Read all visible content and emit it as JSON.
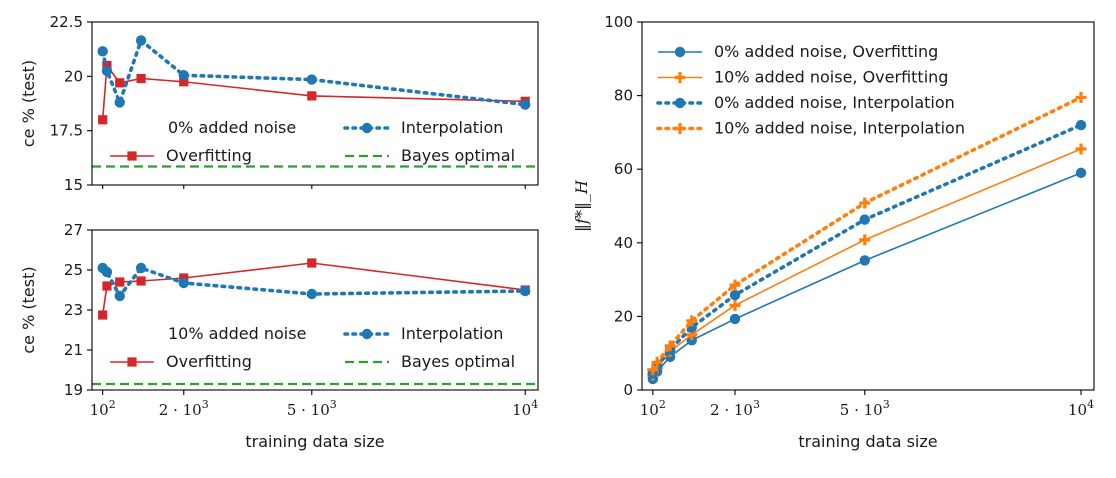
{
  "chart_data": [
    {
      "type": "line",
      "panel": "top-left",
      "xlabel": "",
      "ylabel": "ce % (test)",
      "xlim": [
        -150,
        10300
      ],
      "ylim": [
        15,
        22.5
      ],
      "yticks": [
        "15",
        "17.5",
        "20",
        "22.5"
      ],
      "ytick_values": [
        15,
        17.5,
        20,
        22.5
      ],
      "legend_title": "0% added noise",
      "legend_position": "center",
      "series": [
        {
          "name": "Overfitting",
          "style": "solid",
          "marker": "square",
          "color": "#d62728",
          "x": [
            100,
            200,
            500,
            1000,
            2000,
            5000,
            10000
          ],
          "y": [
            18.0,
            20.5,
            19.7,
            19.9,
            19.75,
            19.1,
            18.85
          ]
        },
        {
          "name": "Interpolation",
          "style": "dotted",
          "marker": "circle",
          "color": "#1f77b4",
          "x": [
            100,
            200,
            500,
            1000,
            2000,
            5000,
            10000
          ],
          "y": [
            21.15,
            20.25,
            18.8,
            21.65,
            20.05,
            19.85,
            18.7
          ]
        },
        {
          "name": "Bayes optimal",
          "style": "dashed",
          "marker": "none",
          "color": "#2ca02c",
          "x": [
            -150,
            10300
          ],
          "y": [
            15.85,
            15.85
          ]
        }
      ]
    },
    {
      "type": "line",
      "panel": "bottom-left",
      "xlabel": "training data size",
      "ylabel": "ce % (test)",
      "xlim": [
        -150,
        10300
      ],
      "ylim": [
        19,
        27
      ],
      "xticks": [
        "10^2",
        "2·10^3",
        "5·10^3",
        "10^4"
      ],
      "xtick_values": [
        100,
        2000,
        5000,
        10000
      ],
      "yticks": [
        "19",
        "21",
        "23",
        "25",
        "27"
      ],
      "ytick_values": [
        19,
        21,
        23,
        25,
        27
      ],
      "legend_title": "10% added noise",
      "legend_position": "center",
      "series": [
        {
          "name": "Overfitting",
          "style": "solid",
          "marker": "square",
          "color": "#d62728",
          "x": [
            100,
            200,
            500,
            1000,
            2000,
            5000,
            10000
          ],
          "y": [
            22.75,
            24.2,
            24.4,
            24.45,
            24.6,
            25.35,
            24.0
          ]
        },
        {
          "name": "Interpolation",
          "style": "dotted",
          "marker": "circle",
          "color": "#1f77b4",
          "x": [
            100,
            200,
            500,
            1000,
            2000,
            5000,
            10000
          ],
          "y": [
            25.1,
            24.9,
            23.7,
            25.1,
            24.35,
            23.8,
            23.95
          ]
        },
        {
          "name": "Bayes optimal",
          "style": "dashed",
          "marker": "none",
          "color": "#2ca02c",
          "x": [
            -150,
            10300
          ],
          "y": [
            19.3,
            19.3
          ]
        }
      ]
    },
    {
      "type": "line",
      "panel": "right",
      "xlabel": "training data size",
      "ylabel": "‖f*‖_H",
      "xlim": [
        -150,
        10300
      ],
      "ylim": [
        0,
        100
      ],
      "xticks": [
        "10^2",
        "2·10^3",
        "5·10^3",
        "10^4"
      ],
      "xtick_values": [
        100,
        2000,
        5000,
        10000
      ],
      "yticks": [
        "0",
        "20",
        "40",
        "60",
        "80",
        "100"
      ],
      "ytick_values": [
        0,
        20,
        40,
        60,
        80,
        100
      ],
      "legend_position": "top-left",
      "series": [
        {
          "name": "0% added noise, Overfitting",
          "style": "solid",
          "marker": "circle",
          "color": "#1f77b4",
          "x": [
            100,
            200,
            500,
            1000,
            2000,
            5000,
            10000
          ],
          "y": [
            3.0,
            5.0,
            9.0,
            13.5,
            19.3,
            35.2,
            59.0
          ]
        },
        {
          "name": "10% added noise, Overfitting",
          "style": "solid",
          "marker": "plus",
          "color": "#ff7f0e",
          "x": [
            100,
            200,
            500,
            1000,
            2000,
            5000,
            10000
          ],
          "y": [
            4.0,
            6.0,
            10.5,
            15.0,
            23.0,
            40.8,
            65.5
          ]
        },
        {
          "name": "0% added noise, Interpolation",
          "style": "dotted",
          "marker": "circle",
          "color": "#1f77b4",
          "x": [
            100,
            200,
            500,
            1000,
            2000,
            5000,
            10000
          ],
          "y": [
            4.5,
            6.5,
            11.0,
            17.0,
            25.8,
            46.3,
            72.0
          ]
        },
        {
          "name": "10% added noise, Interpolation",
          "style": "dotted",
          "marker": "plus",
          "color": "#ff7f0e",
          "x": [
            100,
            200,
            500,
            1000,
            2000,
            5000,
            10000
          ],
          "y": [
            5.5,
            7.5,
            12.0,
            18.8,
            28.5,
            50.8,
            79.5
          ]
        }
      ]
    }
  ]
}
